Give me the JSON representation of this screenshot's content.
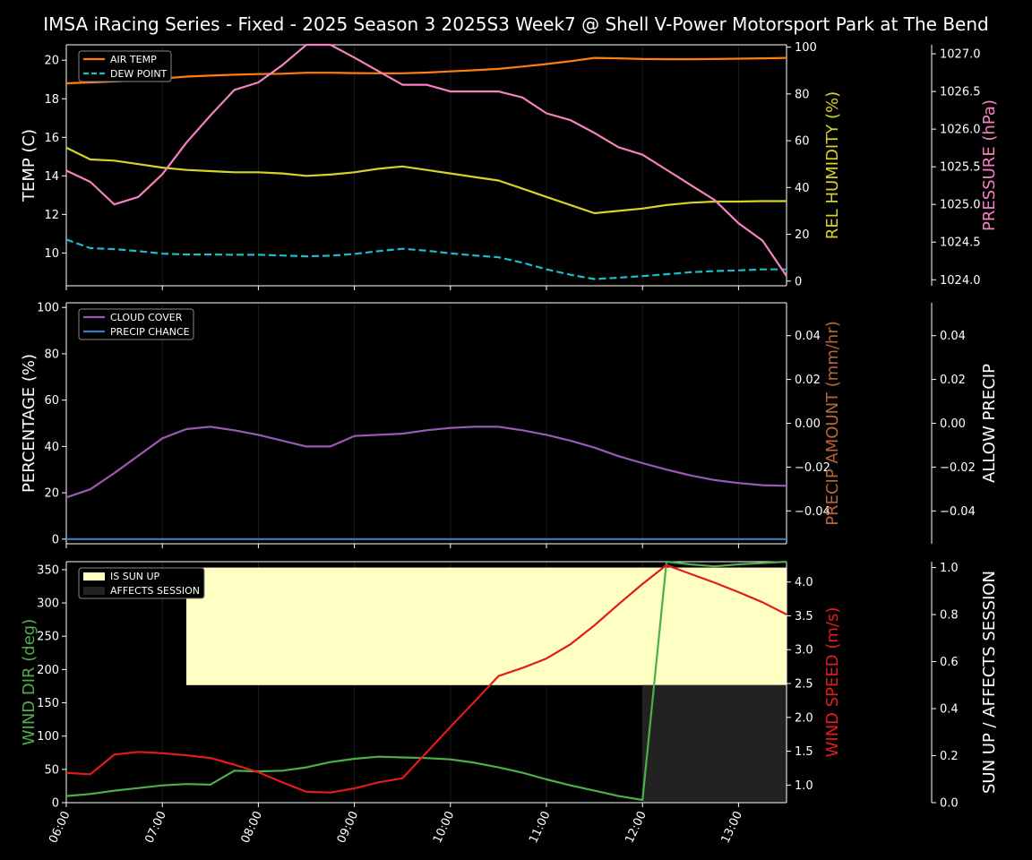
{
  "title": "IMSA iRacing Series - Fixed - 2025 Season 3 2025S3 Week7 @ Shell V-Power Motorsport Park at The Bend",
  "colors": {
    "background": "#000000",
    "air_temp": "#ff7f0e",
    "dew_point": "#17becf",
    "humidity": "#d4d42a",
    "pressure": "#f781bf",
    "cloud_cover": "#9b59b6",
    "precip_chance": "#3a7fc1",
    "wind_dir": "#4daf4a",
    "wind_speed": "#e41a1c",
    "sun_up": "#ffffc4",
    "affects_session": "#222222"
  },
  "chart_data": [
    {
      "type": "line",
      "panel": "temperature",
      "x_ticks": [
        "06:00",
        "07:00",
        "08:00",
        "09:00",
        "10:00",
        "11:00",
        "12:00",
        "13:00"
      ],
      "x_range_hours": [
        6.0,
        13.5
      ],
      "y_left": {
        "label": "TEMP (C)",
        "ticks": [
          10,
          12,
          14,
          16,
          18,
          20
        ],
        "range": [
          8.3,
          20.8
        ]
      },
      "y_right": {
        "label": "REL HUMIDITY (%)",
        "ticks": [
          0,
          20,
          40,
          60,
          80,
          100
        ],
        "range": [
          -2,
          101
        ]
      },
      "y_far": {
        "label": "PRESSURE (hPa)",
        "ticks": [
          "1024.0",
          "1024.5",
          "1025.0",
          "1025.5",
          "1026.0",
          "1026.5",
          "1027.0"
        ],
        "range": [
          1023.92,
          1027.12
        ]
      },
      "legend": [
        "AIR TEMP",
        "DEW POINT"
      ],
      "x": [
        6.0,
        6.25,
        6.5,
        6.75,
        7.0,
        7.25,
        7.5,
        7.75,
        8.0,
        8.25,
        8.5,
        8.75,
        9.0,
        9.25,
        9.5,
        9.75,
        10.0,
        10.25,
        10.5,
        10.75,
        11.0,
        11.25,
        11.5,
        11.75,
        12.0,
        12.25,
        12.5,
        12.75,
        13.0,
        13.25,
        13.5
      ],
      "series": [
        {
          "name": "AIR TEMP",
          "axis": "left",
          "values": [
            18.8,
            18.85,
            18.9,
            18.95,
            19.05,
            19.15,
            19.2,
            19.25,
            19.28,
            19.3,
            19.35,
            19.35,
            19.33,
            19.32,
            19.32,
            19.36,
            19.42,
            19.48,
            19.55,
            19.67,
            19.8,
            19.95,
            20.12,
            20.1,
            20.06,
            20.05,
            20.05,
            20.06,
            20.08,
            20.1,
            20.12
          ]
        },
        {
          "name": "DEW POINT",
          "axis": "left",
          "values": [
            10.7,
            10.25,
            10.2,
            10.1,
            9.97,
            9.92,
            9.92,
            9.91,
            9.91,
            9.87,
            9.83,
            9.86,
            9.95,
            10.1,
            10.22,
            10.12,
            9.98,
            9.87,
            9.78,
            9.5,
            9.15,
            8.87,
            8.65,
            8.72,
            8.8,
            8.9,
            9.0,
            9.06,
            9.1,
            9.15,
            9.15
          ]
        },
        {
          "values": [
            57,
            52,
            51.5,
            50,
            48.5,
            47.5,
            47,
            46.5,
            46.5,
            46,
            45,
            45.5,
            46.5,
            48,
            49,
            47.5,
            46,
            44.5,
            43,
            39.5,
            36,
            32.5,
            29,
            30,
            31,
            32.5,
            33.5,
            34,
            34,
            34.2,
            34.2
          ]
        },
        {
          "values": [
            1025.45,
            1025.3,
            1025.0,
            1025.1,
            1025.4,
            1025.82,
            1026.18,
            1026.52,
            1026.62,
            1026.85,
            1027.12,
            1027.12,
            1026.95,
            1026.77,
            1026.59,
            1026.59,
            1026.5,
            1026.5,
            1026.5,
            1026.42,
            1026.21,
            1026.12,
            1025.95,
            1025.76,
            1025.66,
            1025.46,
            1025.26,
            1025.06,
            1024.75,
            1024.52,
            1024.05
          ]
        }
      ]
    },
    {
      "type": "line",
      "panel": "precipitation",
      "x_range_hours": [
        6.0,
        13.5
      ],
      "y_left": {
        "label": "PERCENTAGE (%)",
        "ticks": [
          0,
          20,
          40,
          60,
          80,
          100
        ],
        "range": [
          -2,
          102
        ]
      },
      "y_right": {
        "label": "PRECIP AMOUNT (mm/hr)",
        "ticks": [
          "0.04",
          "0.02",
          "0.00",
          "−0.02",
          "−0.04"
        ],
        "range": [
          -0.055,
          0.055
        ]
      },
      "y_far": {
        "label": "ALLOW PRECIP",
        "ticks": [
          "0.04",
          "0.02",
          "0.00",
          "−0.02",
          "−0.04"
        ],
        "range": [
          -0.055,
          0.055
        ]
      },
      "legend": [
        "CLOUD COVER",
        "PRECIP CHANCE"
      ],
      "x": [
        6.0,
        6.25,
        6.5,
        6.75,
        7.0,
        7.25,
        7.5,
        7.75,
        8.0,
        8.25,
        8.5,
        8.75,
        9.0,
        9.25,
        9.5,
        9.75,
        10.0,
        10.25,
        10.5,
        10.75,
        11.0,
        11.25,
        11.5,
        11.75,
        12.0,
        12.25,
        12.5,
        12.75,
        13.0,
        13.25,
        13.5
      ],
      "series": [
        {
          "name": "CLOUD COVER",
          "axis": "left",
          "values": [
            18,
            21.5,
            28.5,
            36,
            43.5,
            47.5,
            48.5,
            47,
            45,
            42.5,
            40,
            40,
            44.5,
            45,
            45.5,
            47,
            48,
            48.5,
            48.5,
            47,
            45,
            42.5,
            39.5,
            35.8,
            32.8,
            30,
            27.5,
            25.5,
            24.2,
            23.3,
            23
          ]
        },
        {
          "name": "PRECIP CHANCE",
          "axis": "left",
          "values": [
            0,
            0,
            0,
            0,
            0,
            0,
            0,
            0,
            0,
            0,
            0,
            0,
            0,
            0,
            0,
            0,
            0,
            0,
            0,
            0,
            0,
            0,
            0,
            0,
            0,
            0,
            0,
            0,
            0,
            0,
            0
          ]
        }
      ]
    },
    {
      "type": "line",
      "panel": "wind",
      "x_range_hours": [
        6.0,
        13.5
      ],
      "y_left": {
        "label": "WIND DIR (deg)",
        "ticks": [
          0,
          50,
          100,
          150,
          200,
          250,
          300,
          350
        ],
        "range": [
          0,
          362
        ]
      },
      "y_right": {
        "label": "WIND SPEED (m/s)",
        "ticks": [
          "1.0",
          "1.5",
          "2.0",
          "2.5",
          "3.0",
          "3.5",
          "4.0"
        ],
        "range": [
          0.74,
          4.3
        ]
      },
      "y_far": {
        "label": "SUN UP / AFFECTS SESSION",
        "ticks": [
          "0.0",
          "0.2",
          "0.4",
          "0.6",
          "0.8",
          "1.0"
        ],
        "range": [
          0,
          1.025
        ]
      },
      "legend": [
        "IS SUN UP",
        "AFFECTS SESSION"
      ],
      "sun_up_span": [
        7.25,
        13.5
      ],
      "affects_session_span": [
        12.0,
        13.5
      ],
      "x": [
        6.0,
        6.25,
        6.5,
        6.75,
        7.0,
        7.25,
        7.5,
        7.75,
        8.0,
        8.25,
        8.5,
        8.75,
        9.0,
        9.25,
        9.5,
        9.75,
        10.0,
        10.25,
        10.5,
        10.75,
        11.0,
        11.25,
        11.5,
        11.75,
        12.0,
        12.25,
        12.5,
        12.75,
        13.0,
        13.25,
        13.5
      ],
      "series": [
        {
          "values": [
            10,
            13,
            18,
            22,
            26,
            28,
            27,
            48,
            47,
            48,
            53,
            61,
            66,
            69,
            68,
            67,
            65,
            60,
            53,
            45,
            35,
            26,
            18,
            10,
            4,
            362,
            358,
            355,
            358,
            360,
            362
          ]
        },
        {
          "values": [
            1.18,
            1.16,
            1.45,
            1.49,
            1.47,
            1.44,
            1.4,
            1.3,
            1.19,
            1.04,
            0.9,
            0.89,
            0.95,
            1.04,
            1.1,
            1.48,
            1.86,
            2.23,
            2.61,
            2.73,
            2.87,
            3.08,
            3.36,
            3.67,
            3.97,
            4.25,
            4.12,
            3.99,
            3.85,
            3.7,
            3.52
          ]
        }
      ]
    }
  ]
}
